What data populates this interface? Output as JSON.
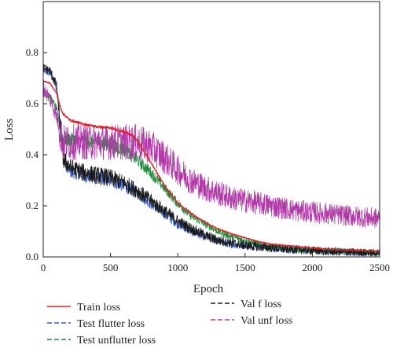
{
  "chart_data": {
    "type": "line",
    "title": "",
    "xlabel": "Epoch",
    "ylabel": "Loss",
    "xlim": [
      0,
      2500
    ],
    "ylim": [
      0,
      1.0
    ],
    "xticks": [
      "0",
      "500",
      "1000",
      "1500",
      "2000",
      "2500"
    ],
    "yticks": [
      "0.0",
      "0.2",
      "0.4",
      "0.6",
      "0.8"
    ],
    "xtick_values": [
      0,
      500,
      1000,
      1500,
      2000,
      2500
    ],
    "ytick_values": [
      0.0,
      0.2,
      0.4,
      0.6,
      0.8
    ],
    "grid": false,
    "legend_position": "bottom",
    "series": [
      {
        "name": "Train loss",
        "color": "#e8202a",
        "style": "solid",
        "noise": 0.003,
        "x": [
          0,
          50,
          100,
          130,
          150,
          200,
          300,
          400,
          500,
          600,
          650,
          700,
          800,
          900,
          1000,
          1100,
          1200,
          1300,
          1400,
          1500,
          1600,
          1700,
          1800,
          1900,
          2000,
          2100,
          2200,
          2300,
          2400,
          2500
        ],
        "y": [
          0.69,
          0.68,
          0.64,
          0.58,
          0.56,
          0.535,
          0.52,
          0.51,
          0.505,
          0.49,
          0.48,
          0.455,
          0.37,
          0.28,
          0.21,
          0.17,
          0.135,
          0.11,
          0.09,
          0.075,
          0.06,
          0.05,
          0.045,
          0.04,
          0.035,
          0.03,
          0.028,
          0.026,
          0.024,
          0.022
        ]
      },
      {
        "name": "Test flutter loss",
        "color": "#3b5fc4",
        "style": "dashed",
        "noise": 0.025,
        "x": [
          0,
          50,
          100,
          130,
          150,
          200,
          300,
          400,
          500,
          600,
          700,
          800,
          900,
          1000,
          1100,
          1200,
          1300,
          1400,
          1500,
          1600,
          1700,
          1800,
          1900,
          2000,
          2100,
          2200,
          2300,
          2400,
          2500
        ],
        "y": [
          0.73,
          0.72,
          0.66,
          0.5,
          0.38,
          0.34,
          0.32,
          0.31,
          0.3,
          0.28,
          0.25,
          0.21,
          0.17,
          0.13,
          0.1,
          0.08,
          0.06,
          0.05,
          0.045,
          0.04,
          0.035,
          0.03,
          0.028,
          0.025,
          0.022,
          0.02,
          0.018,
          0.016,
          0.015
        ]
      },
      {
        "name": "Test unflutter loss",
        "color": "#1f8a3a",
        "style": "dashed",
        "noise": 0.02,
        "x": [
          0,
          50,
          100,
          130,
          150,
          200,
          300,
          400,
          500,
          600,
          700,
          800,
          900,
          1000,
          1100,
          1200,
          1300,
          1400,
          1500,
          1600,
          1700,
          1800,
          1900,
          2000,
          2100,
          2200,
          2300,
          2400,
          2500
        ],
        "y": [
          0.64,
          0.63,
          0.58,
          0.5,
          0.46,
          0.46,
          0.455,
          0.45,
          0.44,
          0.42,
          0.38,
          0.33,
          0.27,
          0.21,
          0.16,
          0.13,
          0.1,
          0.08,
          0.065,
          0.05,
          0.04,
          0.035,
          0.03,
          0.028,
          0.025,
          0.022,
          0.02,
          0.018,
          0.016
        ]
      },
      {
        "name": "Val f loss",
        "color": "#1a1a1a",
        "style": "dashed",
        "noise": 0.03,
        "x": [
          0,
          50,
          100,
          130,
          150,
          200,
          300,
          400,
          500,
          600,
          700,
          800,
          900,
          1000,
          1100,
          1200,
          1300,
          1400,
          1500,
          1600,
          1700,
          1800,
          1900,
          2000,
          2100,
          2200,
          2300,
          2400,
          2500
        ],
        "y": [
          0.74,
          0.73,
          0.67,
          0.5,
          0.38,
          0.35,
          0.33,
          0.32,
          0.31,
          0.29,
          0.26,
          0.22,
          0.18,
          0.14,
          0.11,
          0.085,
          0.065,
          0.055,
          0.045,
          0.04,
          0.035,
          0.03,
          0.028,
          0.025,
          0.022,
          0.02,
          0.018,
          0.016,
          0.015
        ]
      },
      {
        "name": "Val unf loss",
        "color": "#b23aa8",
        "style": "dashed",
        "noise": 0.05,
        "x": [
          0,
          50,
          100,
          130,
          150,
          200,
          300,
          400,
          500,
          600,
          700,
          800,
          900,
          1000,
          1100,
          1200,
          1300,
          1400,
          1500,
          1600,
          1700,
          1800,
          1900,
          2000,
          2100,
          2200,
          2300,
          2400,
          2500
        ],
        "y": [
          0.66,
          0.62,
          0.55,
          0.48,
          0.45,
          0.45,
          0.45,
          0.45,
          0.45,
          0.45,
          0.45,
          0.43,
          0.39,
          0.34,
          0.3,
          0.27,
          0.25,
          0.23,
          0.22,
          0.21,
          0.2,
          0.19,
          0.18,
          0.175,
          0.17,
          0.165,
          0.16,
          0.155,
          0.15
        ]
      }
    ]
  }
}
